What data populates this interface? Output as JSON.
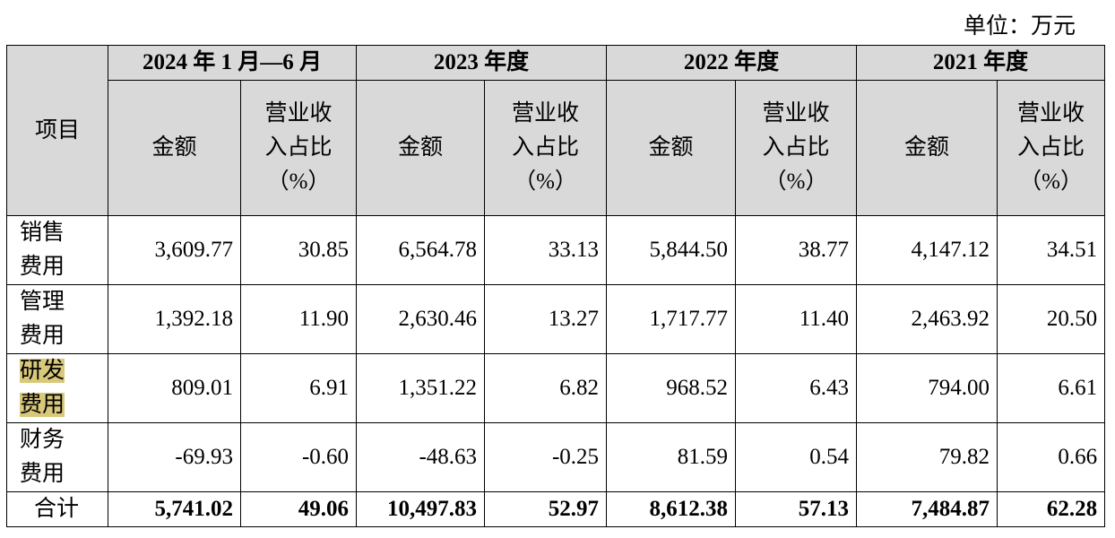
{
  "unit": "单位：万元",
  "table": {
    "item_header": "项目",
    "periods": [
      {
        "label": "2024 年 1 月—6 月",
        "amount": "金额",
        "ratio": "营业收入占比（%）"
      },
      {
        "label": "2023 年度",
        "amount": "金额",
        "ratio": "营业收入占比（%）"
      },
      {
        "label": "2022 年度",
        "amount": "金额",
        "ratio": "营业收入占比（%）"
      },
      {
        "label": "2021 年度",
        "amount": "金额",
        "ratio": "营业收入占比（%）"
      }
    ],
    "rows": [
      [
        "销售费用",
        "3,609.77",
        "30.85",
        "6,564.78",
        "33.13",
        "5,844.50",
        "38.77",
        "4,147.12",
        "34.51"
      ],
      [
        "管理费用",
        "1,392.18",
        "11.90",
        "2,630.46",
        "13.27",
        "1,717.77",
        "11.40",
        "2,463.92",
        "20.50"
      ],
      [
        "研发费用",
        "809.01",
        "6.91",
        "1,351.22",
        "6.82",
        "968.52",
        "6.43",
        "794.00",
        "6.61"
      ],
      [
        "财务费用",
        "-69.93",
        "-0.60",
        "-48.63",
        "-0.25",
        "81.59",
        "0.54",
        "79.82",
        "0.66"
      ],
      [
        "合计",
        "5,741.02",
        "49.06",
        "10,497.83",
        "52.97",
        "8,612.38",
        "57.13",
        "7,484.87",
        "62.28"
      ]
    ]
  }
}
